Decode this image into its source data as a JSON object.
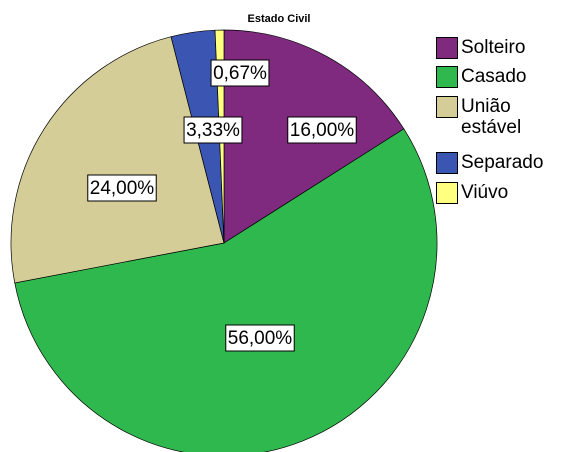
{
  "chart_data": {
    "type": "pie",
    "title": "Estado Civil",
    "categories": [
      "Solteiro",
      "Casado",
      "União estável",
      "Separado",
      "Viúvo"
    ],
    "values": [
      16,
      56,
      24,
      3.33,
      0.67
    ],
    "value_labels": [
      "16,00%",
      "56,00%",
      "24,00%",
      "3,33%",
      "0,67%"
    ],
    "colors": [
      "#7f2a7f",
      "#2fb84e",
      "#d5cd97",
      "#3a55b2",
      "#ffff80"
    ],
    "legend": "right"
  }
}
